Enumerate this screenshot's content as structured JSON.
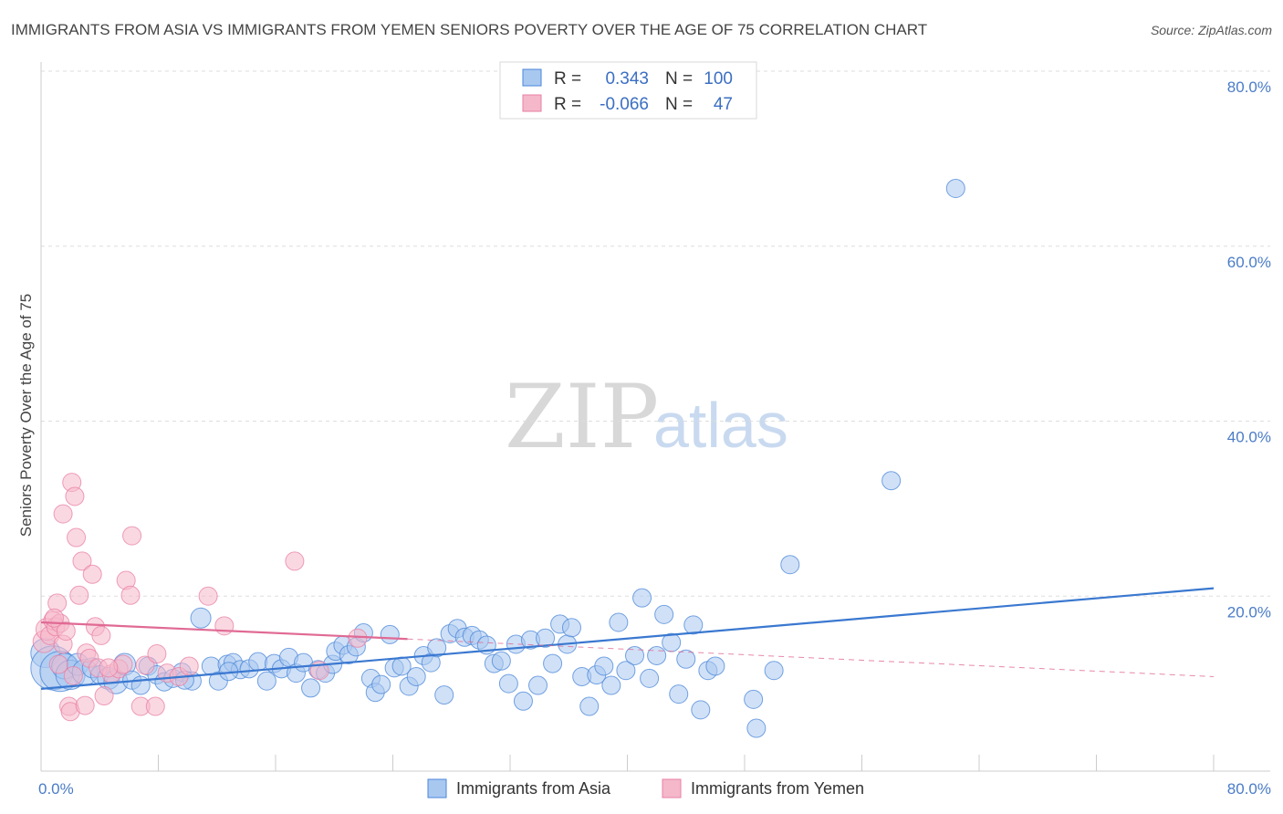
{
  "title": "IMMIGRANTS FROM ASIA VS IMMIGRANTS FROM YEMEN SENIORS POVERTY OVER THE AGE OF 75 CORRELATION CHART",
  "source": "Source: ZipAtlas.com",
  "watermark": {
    "zip": "ZIP",
    "atlas": "atlas"
  },
  "legend": {
    "rows": [
      {
        "r_label": "R =",
        "r_value": "0.343",
        "n_label": "N =",
        "n_value": "100",
        "color": "#a9c8f0"
      },
      {
        "r_label": "R =",
        "r_value": "-0.066",
        "n_label": "N =",
        "n_value": "47",
        "color": "#f5b8cb"
      }
    ]
  },
  "bottom_legend": [
    {
      "label": "Immigrants from Asia",
      "color": "#a9c8f0"
    },
    {
      "label": "Immigrants from Yemen",
      "color": "#f5b8cb"
    }
  ],
  "chart_data": {
    "type": "scatter",
    "title": "IMMIGRANTS FROM ASIA VS IMMIGRANTS FROM YEMEN SENIORS POVERTY OVER THE AGE OF 75 CORRELATION CHART",
    "xlabel": "",
    "ylabel": "Seniors Poverty Over the Age of 75",
    "xlim": [
      0,
      80
    ],
    "ylim": [
      0,
      80
    ],
    "x_tick_labels": [
      "0.0%",
      "80.0%"
    ],
    "y_ticks": [
      20,
      40,
      60,
      80
    ],
    "y_tick_labels": [
      "20.0%",
      "40.0%",
      "60.0%",
      "80.0%"
    ],
    "grid": true,
    "legend_position": "top-center",
    "series": [
      {
        "name": "Immigrants from Asia",
        "color": "#4a86d8",
        "fill": "#a9c8f0",
        "trend": {
          "x": [
            0,
            80
          ],
          "y": [
            9.4,
            20.9
          ],
          "style": "solid",
          "color": "#3a78d0"
        },
        "points": [
          [
            0.3,
            13.5,
            1.6
          ],
          [
            0.8,
            11.8,
            2.4
          ],
          [
            1.3,
            11.4,
            2.2
          ],
          [
            1.6,
            12.0,
            1.4
          ],
          [
            2.0,
            11.0,
            1.6
          ],
          [
            2.5,
            12.2,
            1.2
          ],
          [
            3.0,
            11.3,
            1.4
          ],
          [
            3.5,
            11.8,
            1.1
          ],
          [
            4.0,
            11.0,
            1.0
          ],
          [
            4.6,
            10.6,
            1.2
          ],
          [
            5.1,
            10.2,
            1.3
          ],
          [
            5.7,
            12.2,
            1.2
          ],
          [
            6.2,
            10.4,
            1.0
          ],
          [
            6.8,
            9.8,
            1.0
          ],
          [
            7.3,
            12.0,
            1.0
          ],
          [
            7.9,
            11.0,
            1.0
          ],
          [
            8.4,
            10.2,
            1.0
          ],
          [
            9.0,
            10.6,
            1.0
          ],
          [
            9.6,
            11.3,
            1.0
          ],
          [
            10.3,
            10.3,
            1.0
          ],
          [
            10.9,
            17.5,
            1.1
          ],
          [
            11.6,
            12.0,
            1.0
          ],
          [
            12.1,
            10.3,
            1.0
          ],
          [
            12.7,
            12.2,
            1.0
          ],
          [
            13.1,
            12.4,
            1.0
          ],
          [
            13.6,
            11.6,
            1.0
          ],
          [
            14.2,
            11.7,
            1.0
          ],
          [
            14.8,
            12.5,
            1.0
          ],
          [
            15.4,
            10.3,
            1.0
          ],
          [
            15.9,
            12.3,
            1.0
          ],
          [
            16.4,
            11.7,
            1.0
          ],
          [
            16.9,
            13.0,
            1.0
          ],
          [
            17.4,
            11.2,
            1.0
          ],
          [
            17.9,
            12.4,
            1.0
          ],
          [
            18.4,
            9.5,
            1.0
          ],
          [
            18.9,
            11.6,
            1.0
          ],
          [
            19.4,
            11.2,
            1.0
          ],
          [
            19.9,
            12.2,
            1.0
          ],
          [
            20.1,
            13.7,
            1.0
          ],
          [
            20.6,
            14.4,
            1.0
          ],
          [
            21.0,
            13.3,
            1.0
          ],
          [
            21.5,
            14.2,
            1.0
          ],
          [
            22.0,
            15.8,
            1.0
          ],
          [
            22.5,
            10.6,
            1.0
          ],
          [
            22.8,
            9.0,
            1.0
          ],
          [
            23.2,
            9.9,
            1.0
          ],
          [
            23.8,
            15.6,
            1.0
          ],
          [
            24.1,
            11.8,
            1.0
          ],
          [
            24.6,
            12.0,
            1.0
          ],
          [
            25.1,
            9.7,
            1.0
          ],
          [
            25.6,
            10.8,
            1.0
          ],
          [
            26.1,
            13.2,
            1.0
          ],
          [
            26.6,
            12.4,
            1.0
          ],
          [
            27.0,
            14.1,
            1.0
          ],
          [
            27.5,
            8.7,
            1.0
          ],
          [
            27.9,
            15.7,
            1.0
          ],
          [
            28.4,
            16.3,
            1.0
          ],
          [
            28.9,
            15.3,
            1.0
          ],
          [
            29.4,
            15.5,
            1.0
          ],
          [
            29.9,
            15.0,
            1.0
          ],
          [
            30.4,
            14.4,
            1.0
          ],
          [
            30.9,
            12.3,
            1.0
          ],
          [
            31.4,
            12.6,
            1.0
          ],
          [
            31.9,
            10.0,
            1.0
          ],
          [
            32.4,
            14.5,
            1.0
          ],
          [
            32.9,
            8.0,
            1.0
          ],
          [
            33.4,
            15.0,
            1.0
          ],
          [
            33.9,
            9.8,
            1.0
          ],
          [
            34.4,
            15.2,
            1.0
          ],
          [
            34.9,
            12.3,
            1.0
          ],
          [
            35.4,
            16.8,
            1.0
          ],
          [
            35.9,
            14.5,
            1.0
          ],
          [
            36.2,
            16.4,
            1.0
          ],
          [
            36.9,
            10.8,
            1.0
          ],
          [
            37.4,
            7.4,
            1.0
          ],
          [
            37.9,
            11.0,
            1.0
          ],
          [
            38.4,
            12.0,
            1.0
          ],
          [
            38.9,
            9.8,
            1.0
          ],
          [
            39.4,
            17.0,
            1.0
          ],
          [
            39.9,
            11.5,
            1.0
          ],
          [
            40.5,
            13.2,
            1.0
          ],
          [
            41.0,
            19.8,
            1.0
          ],
          [
            41.5,
            10.6,
            1.0
          ],
          [
            42.0,
            13.2,
            1.0
          ],
          [
            42.5,
            17.9,
            1.0
          ],
          [
            43.0,
            14.7,
            1.0
          ],
          [
            43.5,
            8.8,
            1.0
          ],
          [
            44.0,
            12.8,
            1.0
          ],
          [
            44.5,
            16.7,
            1.0
          ],
          [
            45.0,
            7.0,
            1.0
          ],
          [
            45.5,
            11.5,
            1.0
          ],
          [
            46.0,
            12.0,
            1.0
          ],
          [
            48.6,
            8.2,
            1.0
          ],
          [
            50.0,
            11.5,
            1.0
          ],
          [
            48.8,
            4.9,
            1.0
          ],
          [
            51.1,
            23.6,
            1.0
          ],
          [
            58.0,
            33.2,
            1.0
          ],
          [
            62.4,
            66.6,
            1.0
          ],
          [
            12.8,
            11.4,
            1.0
          ],
          [
            9.8,
            10.4,
            1.0
          ]
        ]
      },
      {
        "name": "Immigrants from Yemen",
        "color": "#e87fa3",
        "fill": "#f5b8cb",
        "trend": {
          "x": [
            0,
            25
          ],
          "y": [
            17.0,
            15.1
          ],
          "style": "solid",
          "color": "#e06a94",
          "extension": {
            "x": [
              25,
              80
            ],
            "y": [
              15.1,
              10.8
            ],
            "style": "dashed"
          }
        },
        "points": [
          [
            0.2,
            14.8,
            1.2
          ],
          [
            0.4,
            16.2,
            1.2
          ],
          [
            0.6,
            15.5,
            1.0
          ],
          [
            0.8,
            17.2,
            1.0
          ],
          [
            1.0,
            16.5,
            1.0
          ],
          [
            1.1,
            19.2,
            1.0
          ],
          [
            1.3,
            16.9,
            1.0
          ],
          [
            1.5,
            14.5,
            1.0
          ],
          [
            1.7,
            16.0,
            1.0
          ],
          [
            1.9,
            7.4,
            1.0
          ],
          [
            2.0,
            6.8,
            1.0
          ],
          [
            2.1,
            33.0,
            1.0
          ],
          [
            2.3,
            31.4,
            1.0
          ],
          [
            2.4,
            26.7,
            1.0
          ],
          [
            2.6,
            20.1,
            1.0
          ],
          [
            2.8,
            24.0,
            1.0
          ],
          [
            3.0,
            7.5,
            1.0
          ],
          [
            3.1,
            13.5,
            1.0
          ],
          [
            3.3,
            12.9,
            1.0
          ],
          [
            3.5,
            22.5,
            1.0
          ],
          [
            3.7,
            16.5,
            1.0
          ],
          [
            3.9,
            11.8,
            1.0
          ],
          [
            4.1,
            15.5,
            1.0
          ],
          [
            4.3,
            8.6,
            1.0
          ],
          [
            4.8,
            11.1,
            1.0
          ],
          [
            5.3,
            11.7,
            1.0
          ],
          [
            5.6,
            12.2,
            1.0
          ],
          [
            5.8,
            21.8,
            1.0
          ],
          [
            6.1,
            20.1,
            1.0
          ],
          [
            6.2,
            26.9,
            1.0
          ],
          [
            6.8,
            7.4,
            1.0
          ],
          [
            7.1,
            12.1,
            1.0
          ],
          [
            7.8,
            7.4,
            1.0
          ],
          [
            7.9,
            13.4,
            1.0
          ],
          [
            8.6,
            11.2,
            1.0
          ],
          [
            9.4,
            10.8,
            1.0
          ],
          [
            10.1,
            12.0,
            1.0
          ],
          [
            11.4,
            20.0,
            1.0
          ],
          [
            12.5,
            16.6,
            1.0
          ],
          [
            17.3,
            24.0,
            1.0
          ],
          [
            19.0,
            11.5,
            1.0
          ],
          [
            21.6,
            15.2,
            1.0
          ],
          [
            1.5,
            29.4,
            1.0
          ],
          [
            0.9,
            17.5,
            1.0
          ],
          [
            2.2,
            10.9,
            1.0
          ],
          [
            1.2,
            12.2,
            1.0
          ],
          [
            4.6,
            11.8,
            1.0
          ]
        ]
      }
    ]
  }
}
